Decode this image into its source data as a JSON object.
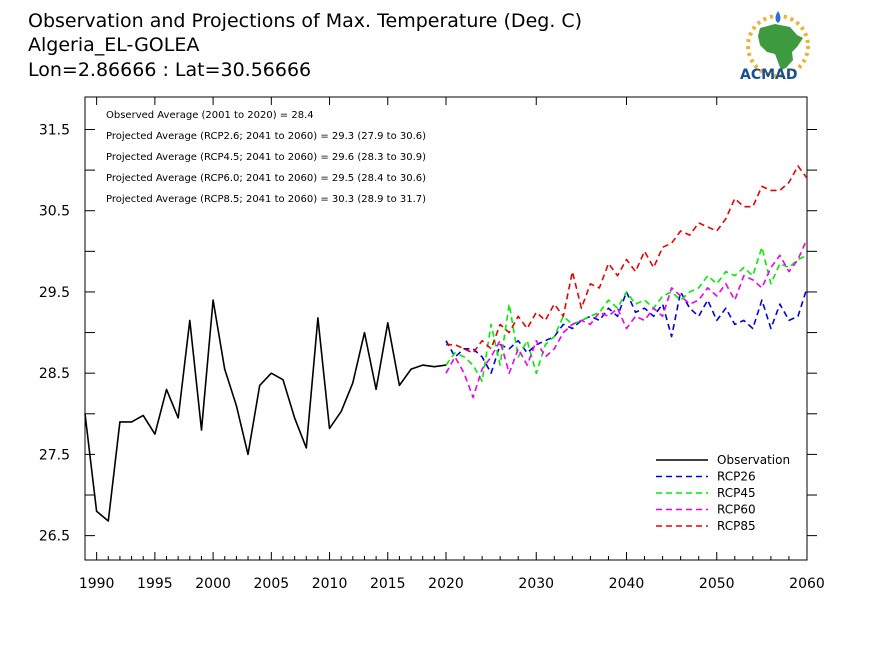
{
  "chart_data": {
    "type": "line",
    "title_lines": [
      "Observation and Projections of Max. Temperature (Deg. C)",
      "Algeria_EL-GOLEA",
      "Lon=2.86666 : Lat=30.56666"
    ],
    "xlabel": "",
    "ylabel": "",
    "xlim": [
      1989,
      2060
    ],
    "ylim": [
      26.2,
      31.9
    ],
    "x_ticks": [
      1990,
      1995,
      2000,
      2005,
      2010,
      2015,
      2020,
      2030,
      2040,
      2050,
      2060
    ],
    "y_ticks": [
      26.5,
      27.5,
      28.5,
      29.5,
      30.5,
      31.5
    ],
    "annotations": [
      "Observed Average (2001 to 2020) = 28.4",
      "Projected Average (RCP2.6; 2041 to 2060) = 29.3 (27.9 to 30.6)",
      "Projected Average (RCP4.5; 2041 to 2060) = 29.6 (28.3 to 30.9)",
      "Projected Average (RCP6.0; 2041 to 2060) = 29.5 (28.4 to 30.6)",
      "Projected Average (RCP8.5; 2041 to 2060) = 30.3 (28.9 to 31.7)"
    ],
    "legend_position": "bottom-right",
    "series": [
      {
        "name": "Observation",
        "color": "#000000",
        "dash": "solid",
        "x": [
          1989,
          1990,
          1991,
          1992,
          1993,
          1994,
          1995,
          1996,
          1997,
          1998,
          1999,
          2000,
          2001,
          2002,
          2003,
          2004,
          2005,
          2006,
          2007,
          2008,
          2009,
          2010,
          2011,
          2012,
          2013,
          2014,
          2015,
          2016,
          2017,
          2018,
          2019,
          2020
        ],
        "values": [
          28.0,
          26.8,
          26.68,
          27.9,
          27.9,
          27.98,
          27.75,
          28.3,
          27.95,
          29.15,
          27.8,
          29.4,
          28.55,
          28.1,
          27.5,
          28.35,
          28.5,
          28.42,
          27.95,
          27.58,
          29.18,
          27.82,
          28.03,
          28.38,
          29.0,
          28.3,
          29.12,
          28.35,
          28.55,
          28.6,
          28.58,
          28.6
        ]
      },
      {
        "name": "RCP26",
        "color": "#0000ee",
        "dash": "dashed",
        "x": [
          2020,
          2021,
          2022,
          2023,
          2024,
          2025,
          2026,
          2027,
          2028,
          2029,
          2030,
          2031,
          2032,
          2033,
          2034,
          2035,
          2036,
          2037,
          2038,
          2039,
          2040,
          2041,
          2042,
          2043,
          2044,
          2045,
          2046,
          2047,
          2048,
          2049,
          2050,
          2051,
          2052,
          2053,
          2054,
          2055,
          2056,
          2057,
          2058,
          2059,
          2060
        ],
        "values": [
          28.9,
          28.7,
          28.8,
          28.8,
          28.7,
          28.5,
          28.85,
          28.8,
          28.9,
          28.75,
          28.85,
          28.9,
          28.95,
          29.1,
          29.05,
          29.15,
          29.2,
          29.15,
          29.3,
          29.2,
          29.5,
          29.25,
          29.3,
          29.2,
          29.35,
          28.95,
          29.5,
          29.3,
          29.2,
          29.4,
          29.15,
          29.3,
          29.1,
          29.15,
          29.05,
          29.4,
          29.05,
          29.35,
          29.15,
          29.2,
          29.55
        ]
      },
      {
        "name": "RCP45",
        "color": "#00ee00",
        "dash": "dashed",
        "x": [
          2020,
          2021,
          2022,
          2023,
          2024,
          2025,
          2026,
          2027,
          2028,
          2029,
          2030,
          2031,
          2032,
          2033,
          2034,
          2035,
          2036,
          2037,
          2038,
          2039,
          2040,
          2041,
          2042,
          2043,
          2044,
          2045,
          2046,
          2047,
          2048,
          2049,
          2050,
          2051,
          2052,
          2053,
          2054,
          2055,
          2056,
          2057,
          2058,
          2059,
          2060
        ],
        "values": [
          28.6,
          28.75,
          28.7,
          28.6,
          28.4,
          29.1,
          28.6,
          29.35,
          28.7,
          28.9,
          28.5,
          28.85,
          28.95,
          29.2,
          29.1,
          29.15,
          29.2,
          29.25,
          29.4,
          29.3,
          29.5,
          29.35,
          29.4,
          29.3,
          29.45,
          29.5,
          29.4,
          29.5,
          29.55,
          29.7,
          29.6,
          29.75,
          29.7,
          29.8,
          29.7,
          30.05,
          29.6,
          29.85,
          29.8,
          29.9,
          29.95
        ]
      },
      {
        "name": "RCP60",
        "color": "#ee00ee",
        "dash": "dashed",
        "x": [
          2020,
          2021,
          2022,
          2023,
          2024,
          2025,
          2026,
          2027,
          2028,
          2029,
          2030,
          2031,
          2032,
          2033,
          2034,
          2035,
          2036,
          2037,
          2038,
          2039,
          2040,
          2041,
          2042,
          2043,
          2044,
          2045,
          2046,
          2047,
          2048,
          2049,
          2050,
          2051,
          2052,
          2053,
          2054,
          2055,
          2056,
          2057,
          2058,
          2059,
          2060
        ],
        "values": [
          28.5,
          28.7,
          28.5,
          28.2,
          28.55,
          28.7,
          28.9,
          28.5,
          28.8,
          28.6,
          28.9,
          28.7,
          28.8,
          29.0,
          29.1,
          29.15,
          29.1,
          29.25,
          29.2,
          29.3,
          29.05,
          29.2,
          29.15,
          29.3,
          29.2,
          29.55,
          29.45,
          29.35,
          29.4,
          29.55,
          29.45,
          29.6,
          29.4,
          29.7,
          29.65,
          29.55,
          29.8,
          29.95,
          29.75,
          29.9,
          30.15
        ]
      },
      {
        "name": "RCP85",
        "color": "#ee0000",
        "dash": "dashed",
        "x": [
          2020,
          2021,
          2022,
          2023,
          2024,
          2025,
          2026,
          2027,
          2028,
          2029,
          2030,
          2031,
          2032,
          2033,
          2034,
          2035,
          2036,
          2037,
          2038,
          2039,
          2040,
          2041,
          2042,
          2043,
          2044,
          2045,
          2046,
          2047,
          2048,
          2049,
          2050,
          2051,
          2052,
          2053,
          2054,
          2055,
          2056,
          2057,
          2058,
          2059,
          2060
        ],
        "values": [
          28.85,
          28.85,
          28.8,
          28.75,
          28.9,
          28.8,
          29.1,
          29.0,
          29.2,
          29.05,
          29.25,
          29.15,
          29.35,
          29.2,
          29.75,
          29.3,
          29.6,
          29.55,
          29.85,
          29.7,
          29.9,
          29.75,
          30.0,
          29.8,
          30.05,
          30.1,
          30.25,
          30.2,
          30.35,
          30.3,
          30.25,
          30.4,
          30.65,
          30.55,
          30.55,
          30.8,
          30.75,
          30.75,
          30.85,
          31.05,
          30.9
        ]
      }
    ]
  },
  "logo": {
    "text": "ACMAD"
  }
}
